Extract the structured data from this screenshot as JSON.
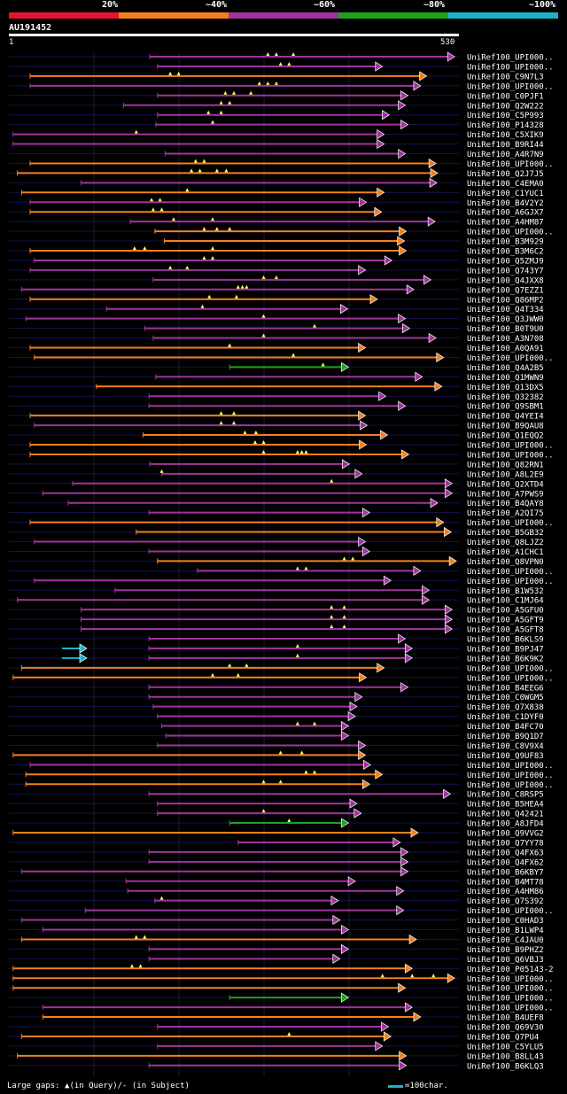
{
  "chart_data": {
    "type": "alignment",
    "query": {
      "name": "AU191452",
      "start_label": "1",
      "end_label": "530",
      "length": 530
    },
    "legend": [
      {
        "label": "20%",
        "color": "#e8142d"
      },
      {
        "label": "~40%",
        "color": "#f28020"
      },
      {
        "label": "~60%",
        "color": "#a0349e"
      },
      {
        "label": "~80%",
        "color": "#20a020"
      },
      {
        "label": "~100%",
        "color": "#1ab3c8"
      }
    ],
    "footer_left": "Large gaps: ▲(in Query)/- (in Subject)",
    "footer_right": "=100char.",
    "hits": [
      {
        "label": "UniRef100_UPI000..",
        "c": "p",
        "s": 166,
        "e": 525,
        "m": [
          305,
          315,
          335
        ]
      },
      {
        "label": "UniRef100_UPI000..",
        "c": "p",
        "s": 175,
        "e": 440,
        "m": [
          320,
          330
        ]
      },
      {
        "label": "UniRef100_C9N7L3",
        "c": "o",
        "s": 25,
        "e": 492,
        "m": [
          190,
          200
        ]
      },
      {
        "label": "UniRef100_UPI000..",
        "c": "p",
        "s": 25,
        "e": 485,
        "m": [
          295,
          305,
          315
        ]
      },
      {
        "label": "UniRef100_C0PJF1",
        "c": "p",
        "s": 175,
        "e": 470,
        "m": [
          255,
          265,
          285
        ]
      },
      {
        "label": "UniRef100_Q2W222",
        "c": "p",
        "s": 135,
        "e": 467,
        "m": [
          250,
          260
        ]
      },
      {
        "label": "UniRef100_C5P993",
        "c": "p",
        "s": 175,
        "e": 448,
        "m": [
          235,
          250
        ]
      },
      {
        "label": "UniRef100_P14328",
        "c": "p",
        "s": 173,
        "e": 470,
        "m": [
          240
        ]
      },
      {
        "label": "UniRef100_C5XIK9",
        "c": "p",
        "s": 5,
        "e": 442,
        "m": [
          150
        ]
      },
      {
        "label": "UniRef100_B9RI44",
        "c": "p",
        "s": 5,
        "e": 442,
        "m": []
      },
      {
        "label": "UniRef100_A4R7N9",
        "c": "p",
        "s": 184,
        "e": 467,
        "m": []
      },
      {
        "label": "UniRef100_UPI000..",
        "c": "o",
        "s": 25,
        "e": 503,
        "m": [
          220,
          230
        ]
      },
      {
        "label": "UniRef100_Q2J7J5",
        "c": "o",
        "s": 10,
        "e": 505,
        "m": [
          215,
          225,
          245,
          256
        ]
      },
      {
        "label": "UniRef100_C4EMA0",
        "c": "p",
        "s": 85,
        "e": 504,
        "m": []
      },
      {
        "label": "UniRef100_C1YUC1",
        "c": "o",
        "s": 15,
        "e": 442,
        "m": [
          210
        ]
      },
      {
        "label": "UniRef100_B4V2Y2",
        "c": "p",
        "s": 25,
        "e": 421,
        "m": [
          168,
          178
        ]
      },
      {
        "label": "UniRef100_A6GJX7",
        "c": "o",
        "s": 25,
        "e": 439,
        "m": [
          170,
          180
        ]
      },
      {
        "label": "UniRef100_A4HM87",
        "c": "p",
        "s": 143,
        "e": 502,
        "m": [
          194,
          240
        ]
      },
      {
        "label": "UniRef100_UPI000..",
        "c": "o",
        "s": 172,
        "e": 468,
        "m": [
          230,
          245,
          260
        ]
      },
      {
        "label": "UniRef100_B3M929",
        "c": "o",
        "s": 183,
        "e": 466,
        "m": []
      },
      {
        "label": "UniRef100_B3M6C2",
        "c": "o",
        "s": 25,
        "e": 468,
        "m": [
          148,
          160,
          240
        ]
      },
      {
        "label": "UniRef100_Q5ZMJ9",
        "c": "p",
        "s": 30,
        "e": 451,
        "m": [
          230,
          240
        ]
      },
      {
        "label": "UniRef100_Q743Y7",
        "c": "p",
        "s": 25,
        "e": 420,
        "m": [
          190,
          210
        ]
      },
      {
        "label": "UniRef100_Q4JXX8",
        "c": "p",
        "s": 170,
        "e": 497,
        "m": [
          300,
          315
        ]
      },
      {
        "label": "UniRef100_Q7EZZ1",
        "c": "p",
        "s": 15,
        "e": 477,
        "m": [
          270,
          275,
          280
        ]
      },
      {
        "label": "UniRef100_Q86MP2",
        "c": "o",
        "s": 25,
        "e": 434,
        "m": [
          236,
          268
        ]
      },
      {
        "label": "UniRef100_Q4T334",
        "c": "p",
        "s": 115,
        "e": 399,
        "m": [
          228
        ]
      },
      {
        "label": "UniRef100_Q3JWW0",
        "c": "p",
        "s": 20,
        "e": 467,
        "m": [
          300
        ]
      },
      {
        "label": "UniRef100_B0T9U0",
        "c": "p",
        "s": 160,
        "e": 472,
        "m": [
          360
        ]
      },
      {
        "label": "UniRef100_A3N708",
        "c": "p",
        "s": 170,
        "e": 503,
        "m": [
          300
        ]
      },
      {
        "label": "UniRef100_A0QA91",
        "c": "o",
        "s": 25,
        "e": 420,
        "m": [
          260
        ]
      },
      {
        "label": "UniRef100_UPI000..",
        "c": "o",
        "s": 30,
        "e": 512,
        "m": [
          335
        ]
      },
      {
        "label": "UniRef100_Q4A2B5",
        "c": "g",
        "s": 260,
        "e": 400,
        "m": [
          370
        ]
      },
      {
        "label": "UniRef100_Q1MWN9",
        "c": "p",
        "s": 173,
        "e": 487,
        "m": []
      },
      {
        "label": "UniRef100_Q13DX5",
        "c": "o",
        "s": 103,
        "e": 510,
        "m": []
      },
      {
        "label": "UniRef100_Q32382",
        "c": "p",
        "s": 165,
        "e": 444,
        "m": []
      },
      {
        "label": "UniRef100_Q9SBM1",
        "c": "p",
        "s": 165,
        "e": 467,
        "m": []
      },
      {
        "label": "UniRef100_Q4YEI4",
        "c": "o",
        "s": 25,
        "e": 420,
        "m": [
          250,
          265
        ]
      },
      {
        "label": "UniRef100_B9QAU8",
        "c": "p",
        "s": 30,
        "e": 422,
        "m": [
          250,
          265
        ]
      },
      {
        "label": "UniRef100_Q1EQQ2",
        "c": "o",
        "s": 158,
        "e": 446,
        "m": [
          278,
          291
        ]
      },
      {
        "label": "UniRef100_UPI000..",
        "c": "o",
        "s": 25,
        "e": 421,
        "m": [
          290,
          300
        ]
      },
      {
        "label": "UniRef100_UPI000..",
        "c": "o",
        "s": 25,
        "e": 471,
        "m": [
          300,
          340,
          345,
          350
        ]
      },
      {
        "label": "UniRef100_Q82RN1",
        "c": "p",
        "s": 166,
        "e": 401,
        "m": []
      },
      {
        "label": "UniRef100_A8L2E9",
        "c": "p",
        "s": 180,
        "e": 416,
        "m": [
          180
        ]
      },
      {
        "label": "UniRef100_Q2XTD4",
        "c": "p",
        "s": 75,
        "e": 522,
        "m": [
          380
        ]
      },
      {
        "label": "UniRef100_A7PWS9",
        "c": "p",
        "s": 40,
        "e": 522,
        "m": []
      },
      {
        "label": "UniRef100_B4QAY8",
        "c": "p",
        "s": 70,
        "e": 505,
        "m": []
      },
      {
        "label": "UniRef100_A2QI75",
        "c": "p",
        "s": 165,
        "e": 425,
        "m": []
      },
      {
        "label": "UniRef100_UPI000..",
        "c": "o",
        "s": 25,
        "e": 512,
        "m": []
      },
      {
        "label": "UniRef100_B5GB32",
        "c": "o",
        "s": 150,
        "e": 521,
        "m": []
      },
      {
        "label": "UniRef100_Q8LJZ2",
        "c": "p",
        "s": 30,
        "e": 420,
        "m": []
      },
      {
        "label": "UniRef100_A1CHC1",
        "c": "p",
        "s": 165,
        "e": 425,
        "m": []
      },
      {
        "label": "UniRef100_Q8VPN0",
        "c": "o",
        "s": 175,
        "e": 527,
        "m": [
          395,
          405
        ]
      },
      {
        "label": "UniRef100_UPI000..",
        "c": "p",
        "s": 222,
        "e": 485,
        "m": [
          340,
          350
        ]
      },
      {
        "label": "UniRef100_UPI000..",
        "c": "p",
        "s": 30,
        "e": 450,
        "m": []
      },
      {
        "label": "UniRef100_B1W532",
        "c": "p",
        "s": 125,
        "e": 495,
        "m": []
      },
      {
        "label": "UniRef100_C1MJ64",
        "c": "p",
        "s": 10,
        "e": 495,
        "m": []
      },
      {
        "label": "UniRef100_A5GFU0",
        "c": "p",
        "s": 85,
        "e": 522,
        "m": [
          380,
          395
        ]
      },
      {
        "label": "UniRef100_A5GFT9",
        "c": "p",
        "s": 85,
        "e": 522,
        "m": [
          380,
          395
        ]
      },
      {
        "label": "UniRef100_A5GFT8",
        "c": "p",
        "s": 85,
        "e": 522,
        "m": [
          380,
          395
        ]
      },
      {
        "label": "UniRef100_B6KLS9",
        "c": "p",
        "s": 165,
        "e": 467,
        "m": []
      },
      {
        "label": "UniRef100_B9PJ47",
        "c": "p",
        "s": 165,
        "e": 475,
        "m": [
          340
        ]
      },
      {
        "label": "UniRef100_B6K9K2",
        "c": "p",
        "s": 165,
        "e": 475,
        "m": [
          340
        ]
      },
      {
        "label": "UniRef100_UPI000..",
        "c": "o",
        "s": 15,
        "e": 442,
        "m": [
          260,
          280
        ]
      },
      {
        "label": "UniRef100_UPI000..",
        "c": "o",
        "s": 5,
        "e": 421,
        "m": [
          240,
          270
        ]
      },
      {
        "label": "UniRef100_B4EEG6",
        "c": "p",
        "s": 165,
        "e": 470,
        "m": []
      },
      {
        "label": "UniRef100_C0WGM5",
        "c": "p",
        "s": 165,
        "e": 416,
        "m": []
      },
      {
        "label": "UniRef100_Q7X838",
        "c": "p",
        "s": 170,
        "e": 410,
        "m": []
      },
      {
        "label": "UniRef100_C1DYF0",
        "c": "p",
        "s": 175,
        "e": 408,
        "m": []
      },
      {
        "label": "UniRef100_B4FC70",
        "c": "p",
        "s": 180,
        "e": 400,
        "m": [
          340,
          360
        ]
      },
      {
        "label": "UniRef100_B9Q1D7",
        "c": "p",
        "s": 185,
        "e": 400,
        "m": []
      },
      {
        "label": "UniRef100_C8V9X4",
        "c": "p",
        "s": 175,
        "e": 420,
        "m": []
      },
      {
        "label": "UniRef100_Q9UF83",
        "c": "o",
        "s": 5,
        "e": 420,
        "m": [
          320,
          345
        ]
      },
      {
        "label": "UniRef100_UPI000..",
        "c": "p",
        "s": 25,
        "e": 426,
        "m": []
      },
      {
        "label": "UniRef100_UPI000..",
        "c": "o",
        "s": 20,
        "e": 440,
        "m": [
          350,
          360
        ]
      },
      {
        "label": "UniRef100_UPI000..",
        "c": "o",
        "s": 20,
        "e": 425,
        "m": [
          300,
          320
        ]
      },
      {
        "label": "UniRef100_C8RSP5",
        "c": "p",
        "s": 165,
        "e": 520,
        "m": []
      },
      {
        "label": "UniRef100_B5HEA4",
        "c": "p",
        "s": 175,
        "e": 410,
        "m": []
      },
      {
        "label": "UniRef100_Q42421",
        "c": "p",
        "s": 175,
        "e": 415,
        "m": [
          300
        ]
      },
      {
        "label": "UniRef100_A8JFD4",
        "c": "g",
        "s": 260,
        "e": 400,
        "m": [
          330
        ]
      },
      {
        "label": "UniRef100_Q9VVG2",
        "c": "o",
        "s": 5,
        "e": 482,
        "m": []
      },
      {
        "label": "UniRef100_Q7YY78",
        "c": "p",
        "s": 270,
        "e": 461,
        "m": []
      },
      {
        "label": "UniRef100_Q4FX63",
        "c": "p",
        "s": 165,
        "e": 470,
        "m": []
      },
      {
        "label": "UniRef100_Q4FX62",
        "c": "p",
        "s": 165,
        "e": 470,
        "m": []
      },
      {
        "label": "UniRef100_B6KBY7",
        "c": "p",
        "s": 15,
        "e": 470,
        "m": []
      },
      {
        "label": "UniRef100_B4MT78",
        "c": "p",
        "s": 138,
        "e": 408,
        "m": []
      },
      {
        "label": "UniRef100_A4HM86",
        "c": "p",
        "s": 140,
        "e": 465,
        "m": []
      },
      {
        "label": "UniRef100_Q7S392",
        "c": "p",
        "s": 172,
        "e": 388,
        "m": [
          180
        ]
      },
      {
        "label": "UniRef100_UPI000..",
        "c": "p",
        "s": 90,
        "e": 465,
        "m": []
      },
      {
        "label": "UniRef100_C0HAD3",
        "c": "p",
        "s": 15,
        "e": 390,
        "m": []
      },
      {
        "label": "UniRef100_B1LWP4",
        "c": "p",
        "s": 40,
        "e": 400,
        "m": []
      },
      {
        "label": "UniRef100_C4JAU0",
        "c": "o",
        "s": 15,
        "e": 480,
        "m": [
          150,
          160
        ]
      },
      {
        "label": "UniRef100_B9PHZ2",
        "c": "p",
        "s": 165,
        "e": 400,
        "m": []
      },
      {
        "label": "UniRef100_Q6VBJ3",
        "c": "p",
        "s": 165,
        "e": 390,
        "m": []
      },
      {
        "label": "UniRef100_P05143-2",
        "c": "o",
        "s": 5,
        "e": 475,
        "m": [
          145,
          155
        ]
      },
      {
        "label": "UniRef100_UPI000..",
        "c": "o",
        "s": 5,
        "e": 525,
        "m": [
          440,
          475,
          500
        ]
      },
      {
        "label": "UniRef100_UPI000..",
        "c": "o",
        "s": 5,
        "e": 467,
        "m": []
      },
      {
        "label": "UniRef100_UPI000..",
        "c": "g",
        "s": 260,
        "e": 400,
        "m": []
      },
      {
        "label": "UniRef100_UPI000..",
        "c": "p",
        "s": 40,
        "e": 475,
        "m": []
      },
      {
        "label": "UniRef100_B4UEF8",
        "c": "o",
        "s": 40,
        "e": 485,
        "m": []
      },
      {
        "label": "UniRef100_Q69V30",
        "c": "p",
        "s": 175,
        "e": 447,
        "m": []
      },
      {
        "label": "UniRef100_Q7PU4",
        "c": "o",
        "s": 15,
        "e": 450,
        "m": [
          330
        ]
      },
      {
        "label": "UniRef100_C5YLU5",
        "c": "p",
        "s": 175,
        "e": 440,
        "m": []
      },
      {
        "label": "UniRef100_B8LL43",
        "c": "o",
        "s": 10,
        "e": 468,
        "m": []
      },
      {
        "label": "UniRef100_B6KLQ3",
        "c": "p",
        "s": 165,
        "e": 468,
        "m": []
      }
    ]
  }
}
